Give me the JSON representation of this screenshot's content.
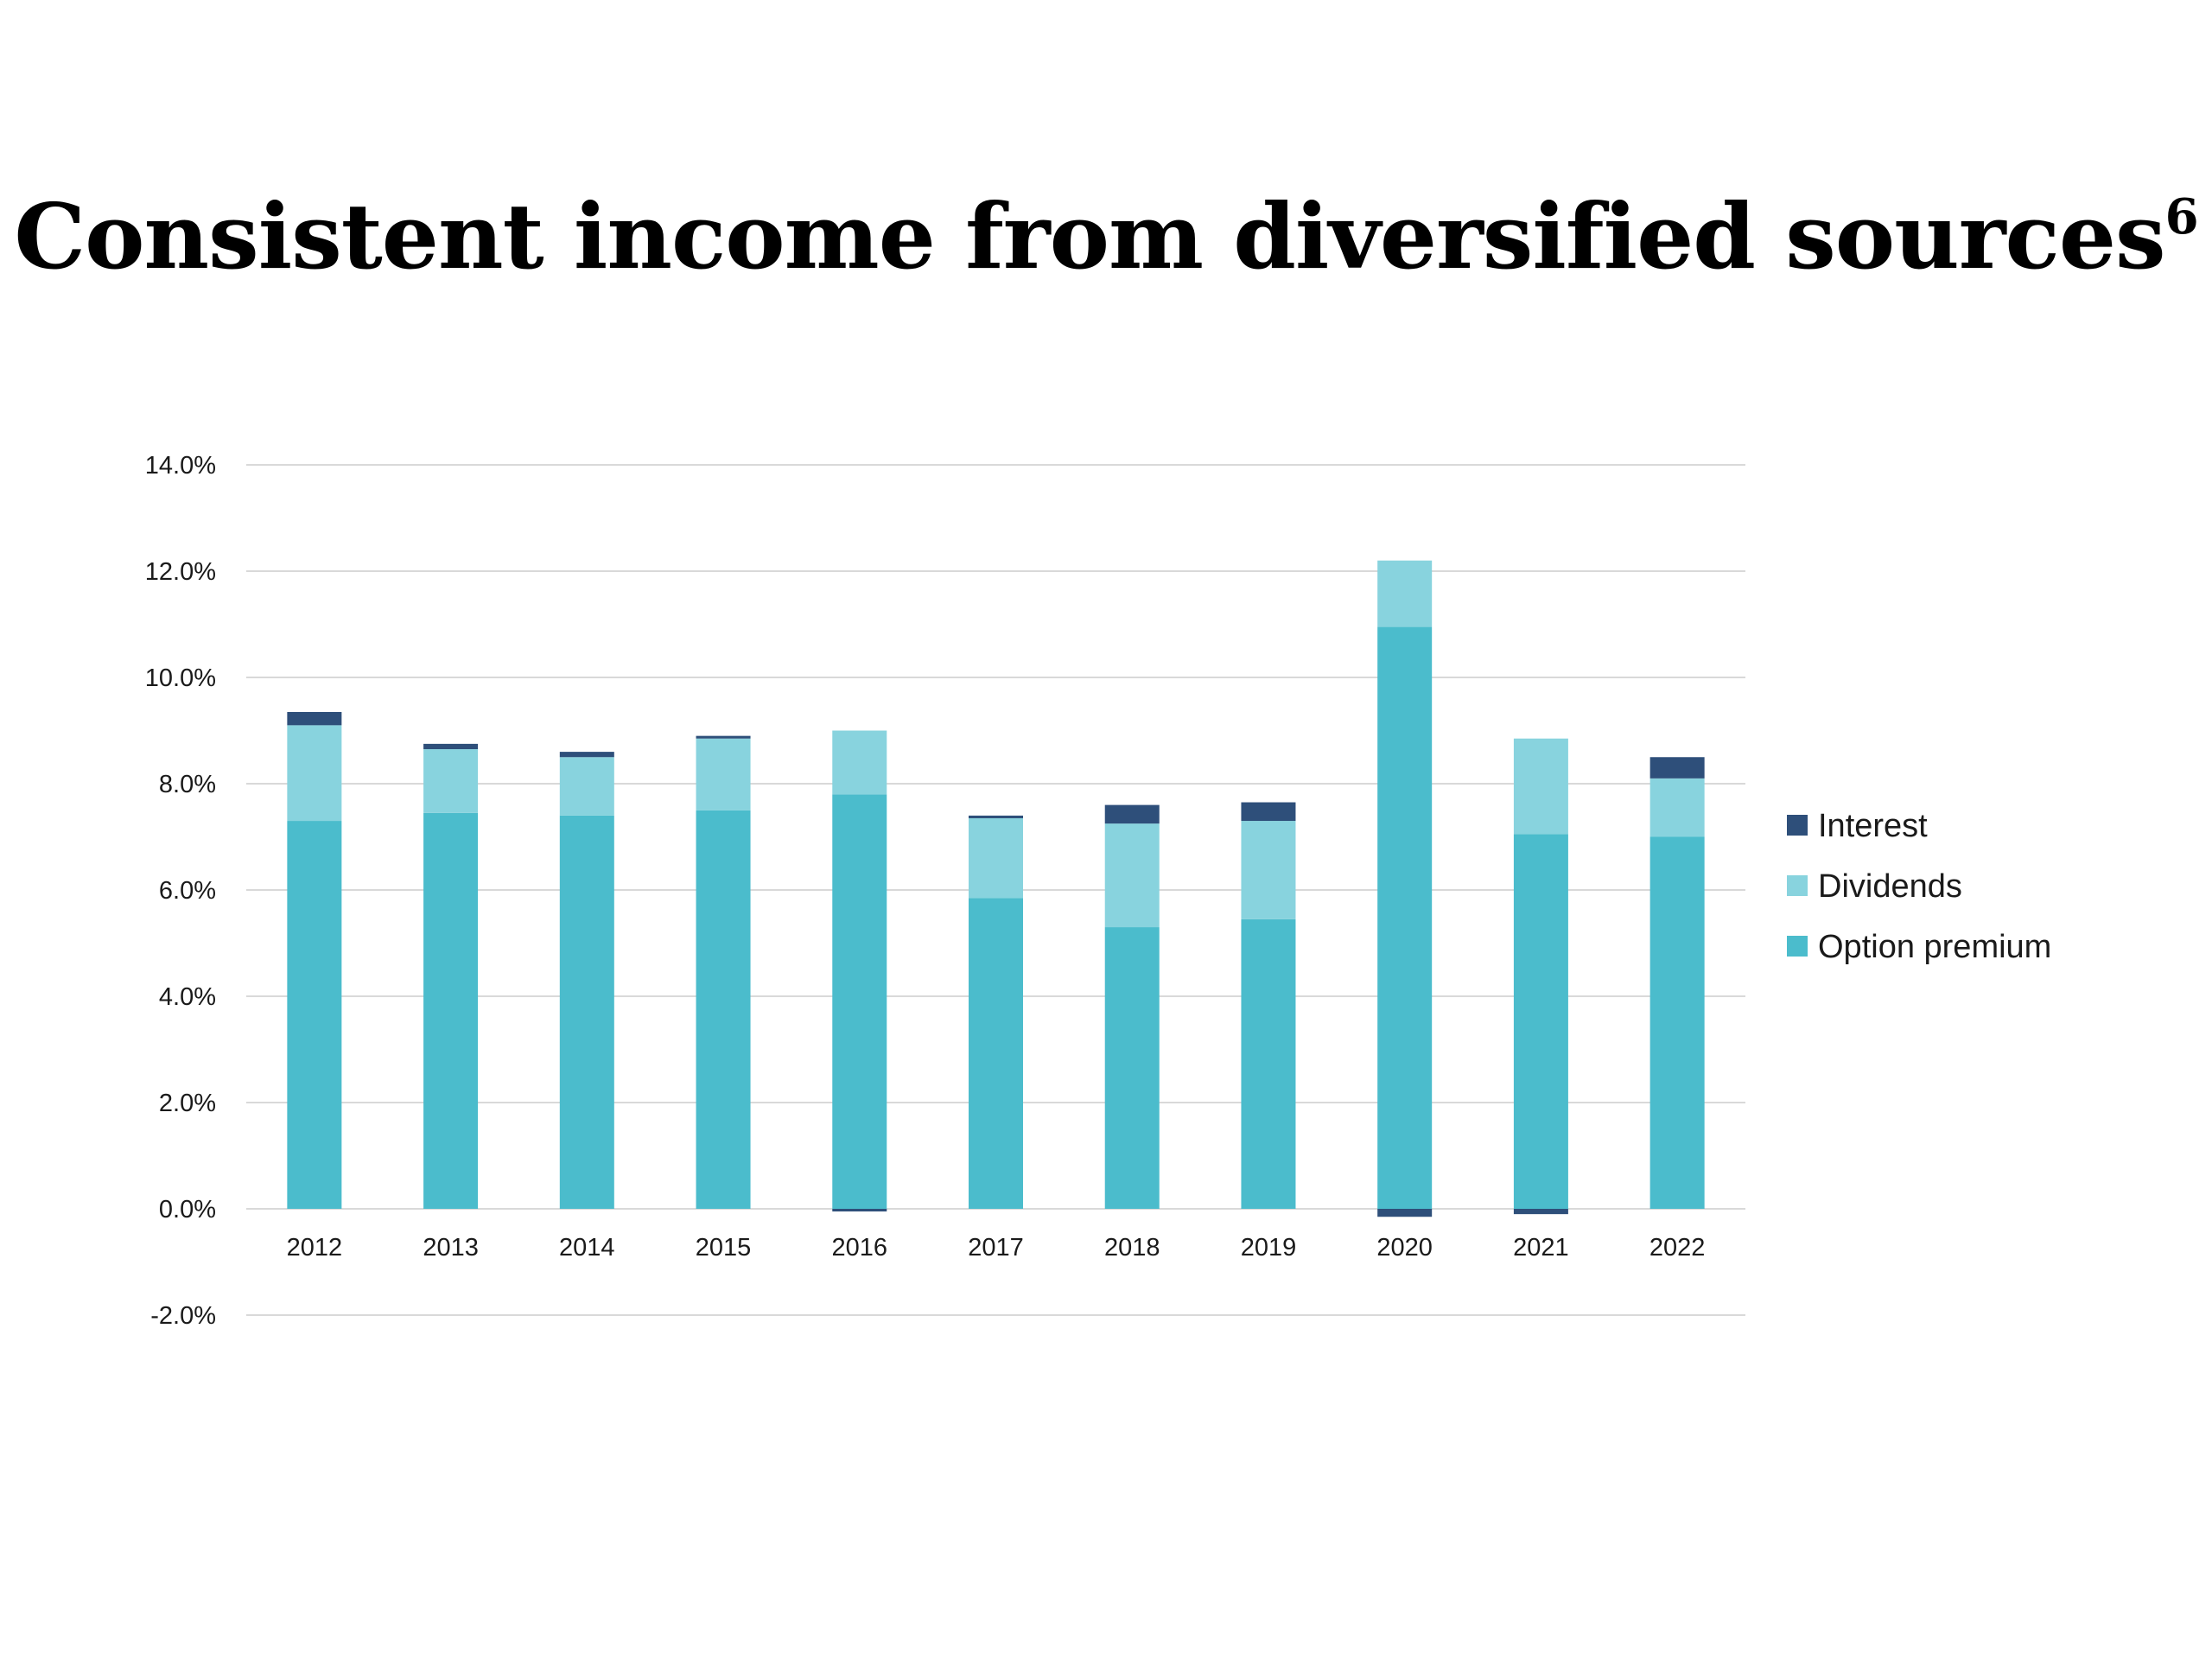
{
  "title": {
    "text": "Consistent income from diversified sources",
    "footnote": "6"
  },
  "colors": {
    "interest": "#2e4f7a",
    "dividends": "#88d3de",
    "option_premium": "#4bbccc",
    "grid": "#d9d9d9"
  },
  "chart_data": {
    "type": "bar",
    "stacked": true,
    "title": "Consistent income from diversified sources",
    "categories": [
      "2012",
      "2013",
      "2014",
      "2015",
      "2016",
      "2017",
      "2018",
      "2019",
      "2020",
      "2021",
      "2022"
    ],
    "series": [
      {
        "name": "Option premium",
        "color": "#4bbccc",
        "values": [
          7.3,
          7.45,
          7.4,
          7.5,
          7.8,
          5.85,
          5.3,
          5.45,
          10.95,
          7.05,
          7.0
        ]
      },
      {
        "name": "Dividends",
        "color": "#88d3de",
        "values": [
          1.8,
          1.2,
          1.1,
          1.35,
          1.2,
          1.5,
          1.95,
          1.85,
          1.25,
          1.8,
          1.1
        ]
      },
      {
        "name": "Interest",
        "color": "#2e4f7a",
        "values": [
          0.25,
          0.1,
          0.1,
          0.05,
          -0.05,
          0.05,
          0.35,
          0.35,
          -0.15,
          -0.1,
          0.4
        ]
      }
    ],
    "ylim": [
      -2.0,
      14.0
    ],
    "yticks": [
      -2.0,
      0.0,
      2.0,
      4.0,
      6.0,
      8.0,
      10.0,
      12.0,
      14.0
    ],
    "ytick_labels": [
      "-2.0%",
      "0.0%",
      "2.0%",
      "4.0%",
      "6.0%",
      "8.0%",
      "10.0%",
      "12.0%",
      "14.0%"
    ],
    "legend": [
      "Interest",
      "Dividends",
      "Option premium"
    ],
    "legend_position": "right",
    "grid": true,
    "xlabel": "",
    "ylabel": ""
  }
}
